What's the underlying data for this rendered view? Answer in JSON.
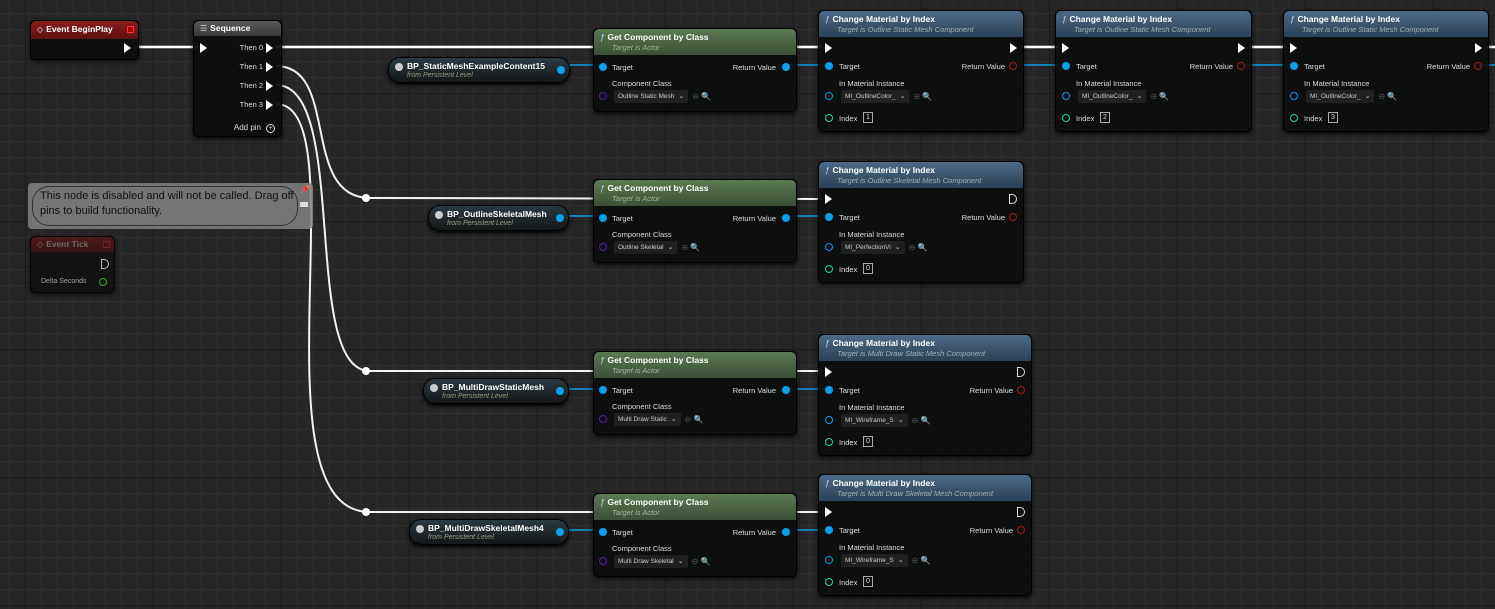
{
  "colors": {
    "exec": "#ffffff",
    "object_pin": "#0ba0ea",
    "class_pin": "#5a1ab0",
    "int_pin": "#1fd4a0",
    "float_pin": "#39c12c",
    "event_header": "#8a1d1d",
    "pure_header": "#5b7a52",
    "func_header": "#4b6a88"
  },
  "event_begin_play": {
    "title": "Event BeginPlay",
    "icon": "event-diamond-icon"
  },
  "sequence": {
    "title": "Sequence",
    "pins": [
      "Then 0",
      "Then 1",
      "Then 2",
      "Then 3"
    ],
    "add_pin": "Add pin"
  },
  "comment": {
    "text": "This node is disabled and will not be called. Drag off pins to build functionality."
  },
  "event_tick": {
    "title": "Event Tick",
    "pin": "Delta Seconds"
  },
  "variables": [
    {
      "name": "BP_StaticMeshExampleContent15",
      "from": "from Persistent Level"
    },
    {
      "name": "BP_OutlineSkeletalMesh",
      "from": "from Persistent Level"
    },
    {
      "name": "BP_MultiDrawStaticMesh",
      "from": "from Persistent Level"
    },
    {
      "name": "BP_MultiDrawSkeletalMesh4",
      "from": "from Persistent Level"
    }
  ],
  "get_component": [
    {
      "title": "Get Component by Class",
      "subtitle": "Target is Actor",
      "target": "Target",
      "return": "Return Value",
      "class_label": "Component Class",
      "class_value": "Outline Static Mesh"
    },
    {
      "title": "Get Component by Class",
      "subtitle": "Target is Actor",
      "target": "Target",
      "return": "Return Value",
      "class_label": "Component Class",
      "class_value": "Outline Skeletal"
    },
    {
      "title": "Get Component by Class",
      "subtitle": "Target is Actor",
      "target": "Target",
      "return": "Return Value",
      "class_label": "Component Class",
      "class_value": "Multi Draw Static"
    },
    {
      "title": "Get Component by Class",
      "subtitle": "Target is Actor",
      "target": "Target",
      "return": "Return Value",
      "class_label": "Component Class",
      "class_value": "Multi Draw Skeletal"
    }
  ],
  "change_material": [
    {
      "title": "Change Material by Index",
      "subtitle": "Target is Outline Static Mesh Component",
      "target": "Target",
      "return": "Return Value",
      "mat_label": "In Material Instance",
      "mat_value": "MI_OutlineColor_",
      "index_label": "Index",
      "index": "1"
    },
    {
      "title": "Change Material by Index",
      "subtitle": "Target is Outline Static Mesh Component",
      "target": "Target",
      "return": "Return Value",
      "mat_label": "In Material Instance",
      "mat_value": "MI_OutlineColor_",
      "index_label": "Index",
      "index": "2"
    },
    {
      "title": "Change Material by Index",
      "subtitle": "Target is Outline Static Mesh Component",
      "target": "Target",
      "return": "Return Value",
      "mat_label": "In Material Instance",
      "mat_value": "MI_OutlineColor_",
      "index_label": "Index",
      "index": "3"
    },
    {
      "title": "Change Material by Index",
      "subtitle": "Target is Outline Skeletal Mesh Component",
      "target": "Target",
      "return": "Return Value",
      "mat_label": "In Material Instance",
      "mat_value": "MI_PerfectionVi",
      "index_label": "Index",
      "index": "0"
    },
    {
      "title": "Change Material by Index",
      "subtitle": "Target is Multi Draw Static Mesh Component",
      "target": "Target",
      "return": "Return Value",
      "mat_label": "In Material Instance",
      "mat_value": "MI_Wireframe_S",
      "index_label": "Index",
      "index": "0"
    },
    {
      "title": "Change Material by Index",
      "subtitle": "Target is Multi Draw Skeletal Mesh Component",
      "target": "Target",
      "return": "Return Value",
      "mat_label": "In Material Instance",
      "mat_value": "MI_Wireframe_S",
      "index_label": "Index",
      "index": "0"
    }
  ]
}
